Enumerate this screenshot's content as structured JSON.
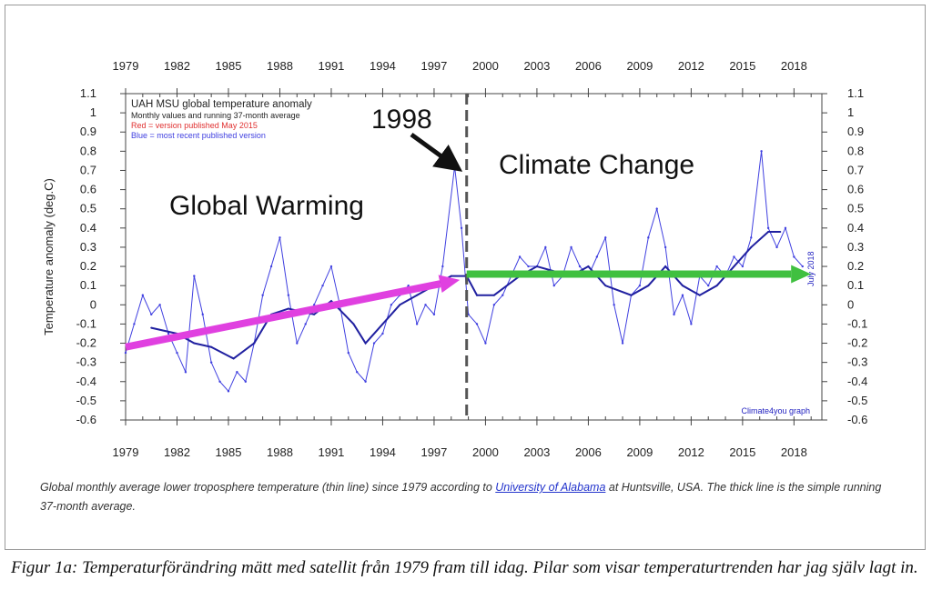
{
  "chart_data": {
    "type": "line",
    "legend": {
      "title": "UAH MSU global temperature anomaly",
      "subtitle": "Monthly values and running 37-month average",
      "red_note": "Red = version published May 2015",
      "blue_note": "Blue = most recent published version",
      "placement": "top-left"
    },
    "ylabel": "Temperature anomaly (deg.C)",
    "xlim": [
      1979,
      2019.6
    ],
    "ylim": [
      -0.6,
      1.1
    ],
    "xticks": [
      1979,
      1982,
      1985,
      1988,
      1991,
      1994,
      1997,
      2000,
      2003,
      2006,
      2009,
      2012,
      2015,
      2018
    ],
    "yticks": [
      -0.6,
      -0.5,
      -0.4,
      -0.3,
      -0.2,
      -0.1,
      0,
      0.1,
      0.2,
      0.3,
      0.4,
      0.5,
      0.6,
      0.7,
      0.8,
      0.9,
      1,
      1.1
    ],
    "grid": false,
    "colors": {
      "monthly": "#4040e0",
      "average": "#2020a0",
      "red_version": "#e03030",
      "warming_arrow": "#e040e0",
      "change_arrow": "#40c040",
      "divider": "#555555"
    },
    "series": [
      {
        "name": "Monthly values",
        "x": [
          1979,
          1979.5,
          1980,
          1980.5,
          1981,
          1981.5,
          1982,
          1982.5,
          1983,
          1983.5,
          1984,
          1984.5,
          1985,
          1985.5,
          1986,
          1986.5,
          1987,
          1987.5,
          1988,
          1988.5,
          1989,
          1989.5,
          1990,
          1990.5,
          1991,
          1991.5,
          1992,
          1992.5,
          1993,
          1993.5,
          1994,
          1994.5,
          1995,
          1995.5,
          1996,
          1996.5,
          1997,
          1997.5,
          1998.2,
          1998.6,
          1999,
          1999.5,
          2000,
          2000.5,
          2001,
          2001.5,
          2002,
          2002.5,
          2003,
          2003.5,
          2004,
          2004.5,
          2005,
          2005.5,
          2006,
          2006.5,
          2007,
          2007.5,
          2008,
          2008.5,
          2009,
          2009.5,
          2010,
          2010.5,
          2011,
          2011.5,
          2012,
          2012.5,
          2013,
          2013.5,
          2014,
          2014.5,
          2015,
          2015.5,
          2016.1,
          2016.5,
          2017,
          2017.5,
          2018,
          2018.5
        ],
        "y": [
          -0.25,
          -0.1,
          0.05,
          -0.05,
          0,
          -0.15,
          -0.25,
          -0.35,
          0.15,
          -0.05,
          -0.3,
          -0.4,
          -0.45,
          -0.35,
          -0.4,
          -0.2,
          0.05,
          0.2,
          0.35,
          0.05,
          -0.2,
          -0.1,
          0,
          0.1,
          0.2,
          0,
          -0.25,
          -0.35,
          -0.4,
          -0.2,
          -0.15,
          0,
          0.05,
          0.1,
          -0.1,
          0,
          -0.05,
          0.2,
          0.72,
          0.4,
          -0.05,
          -0.1,
          -0.2,
          0,
          0.05,
          0.15,
          0.25,
          0.2,
          0.2,
          0.3,
          0.1,
          0.15,
          0.3,
          0.2,
          0.15,
          0.25,
          0.35,
          0,
          -0.2,
          0.05,
          0.1,
          0.35,
          0.5,
          0.3,
          -0.05,
          0.05,
          -0.1,
          0.15,
          0.1,
          0.2,
          0.15,
          0.25,
          0.2,
          0.35,
          0.8,
          0.4,
          0.3,
          0.4,
          0.25,
          0.2
        ]
      },
      {
        "name": "Running 37-month average",
        "x": [
          1980.5,
          1982,
          1983,
          1984,
          1985.3,
          1986.5,
          1987.5,
          1988.5,
          1990,
          1991,
          1992.3,
          1993,
          1994,
          1995,
          1996,
          1997,
          1998,
          1998.9,
          1999.5,
          2000.5,
          2002,
          2003,
          2005,
          2006,
          2007,
          2008.5,
          2009.5,
          2010.5,
          2011.5,
          2012.5,
          2013.5,
          2014.5,
          2015.5,
          2016.5,
          2017.2
        ],
        "y": [
          -0.12,
          -0.15,
          -0.2,
          -0.22,
          -0.28,
          -0.2,
          -0.05,
          -0.02,
          -0.05,
          0.02,
          -0.1,
          -0.2,
          -0.1,
          0,
          0.05,
          0.1,
          0.15,
          0.15,
          0.05,
          0.05,
          0.15,
          0.2,
          0.15,
          0.2,
          0.1,
          0.05,
          0.1,
          0.2,
          0.1,
          0.05,
          0.1,
          0.2,
          0.3,
          0.38,
          0.38
        ]
      }
    ],
    "annotations": {
      "peak": "1998",
      "left": "Global Warming",
      "right": "Climate Change",
      "credit": "Climate4you graph",
      "date": "July 2018"
    },
    "divider_x": 1998.9,
    "warming_arrow": {
      "from": [
        1979,
        -0.22
      ],
      "to": [
        1998.5,
        0.13
      ]
    },
    "change_arrow": {
      "from": [
        1998.9,
        0.16
      ],
      "to": [
        2019,
        0.16
      ]
    }
  },
  "caption": {
    "before": "Global monthly average lower troposphere temperature (thin line) since 1979 according to ",
    "link": "University of Alabama",
    "after": " at Huntsville, USA. The thick line is the simple running 37-month average."
  },
  "figure_caption": "Figur 1a: Temperaturförändring mätt med satellit från 1979 fram till idag. Pilar som visar temperaturtrenden har jag själv lagt in."
}
